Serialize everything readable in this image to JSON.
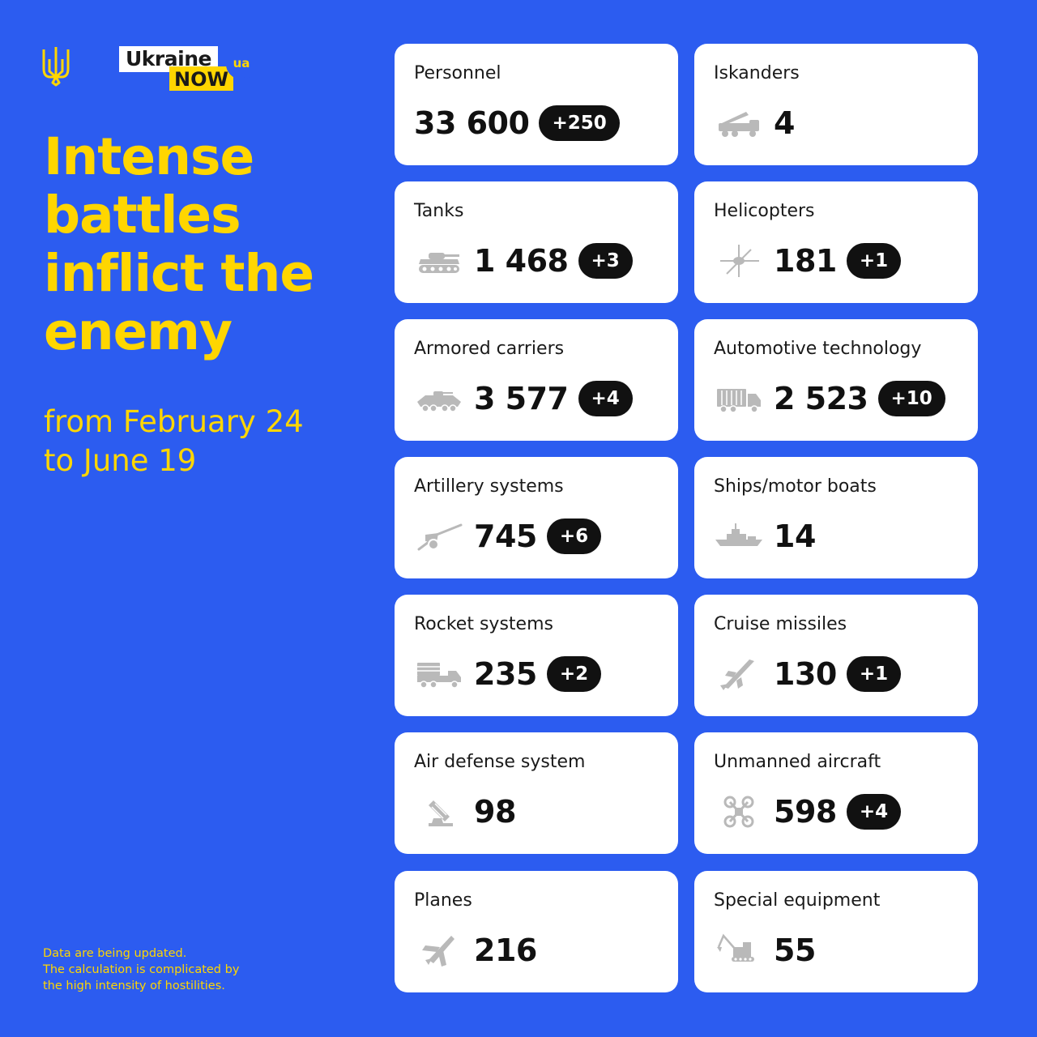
{
  "logo": {
    "word1": "Ukraine",
    "word2": "NOW",
    "suffix": "ua"
  },
  "headline": [
    "Intense",
    "battles",
    "inflict the",
    "enemy"
  ],
  "period": [
    "from February 24",
    "to June 19"
  ],
  "footnote": [
    "Data are being updated.",
    "The calculation is complicated by",
    "the high intensity of hostilities."
  ],
  "colors": {
    "background": "#2c5cf0",
    "accent": "#ffd600",
    "card": "#ffffff",
    "badge": "#111111",
    "icon": "#b9b9b9"
  },
  "cards": [
    {
      "label": "Personnel",
      "value": "33 600",
      "delta": "+250",
      "icon": "none"
    },
    {
      "label": "Iskanders",
      "value": "4",
      "delta": "",
      "icon": "missile-launcher-icon"
    },
    {
      "label": "Tanks",
      "value": "1 468",
      "delta": "+3",
      "icon": "tank-icon"
    },
    {
      "label": "Helicopters",
      "value": "181",
      "delta": "+1",
      "icon": "helicopter-icon"
    },
    {
      "label": "Armored carriers",
      "value": "3 577",
      "delta": "+4",
      "icon": "armored-carrier-icon"
    },
    {
      "label": "Automotive technology",
      "value": "2 523",
      "delta": "+10",
      "icon": "truck-icon"
    },
    {
      "label": "Artillery systems",
      "value": "745",
      "delta": "+6",
      "icon": "artillery-icon"
    },
    {
      "label": "Ships/motor boats",
      "value": "14",
      "delta": "",
      "icon": "ship-icon"
    },
    {
      "label": "Rocket systems",
      "value": "235",
      "delta": "+2",
      "icon": "rocket-launcher-icon"
    },
    {
      "label": "Cruise missiles",
      "value": "130",
      "delta": "+1",
      "icon": "cruise-missile-icon"
    },
    {
      "label": "Air defense system",
      "value": "98",
      "delta": "",
      "icon": "air-defense-icon"
    },
    {
      "label": "Unmanned aircraft",
      "value": "598",
      "delta": "+4",
      "icon": "drone-icon"
    },
    {
      "label": "Planes",
      "value": "216",
      "delta": "",
      "icon": "plane-icon"
    },
    {
      "label": "Special equipment",
      "value": "55",
      "delta": "",
      "icon": "excavator-icon"
    }
  ]
}
